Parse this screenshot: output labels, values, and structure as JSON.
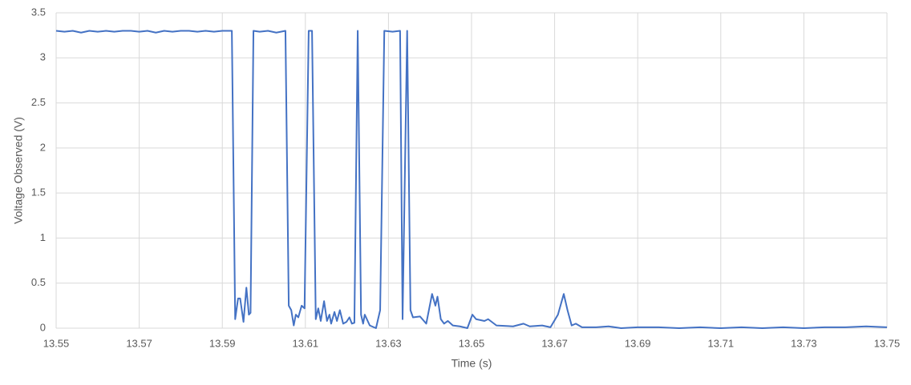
{
  "chart_data": {
    "type": "line",
    "x_label": "Time (s)",
    "y_label": "Voltage Observed (V)",
    "color": "#4472c4",
    "grid": true,
    "xlim": [
      13.55,
      13.75
    ],
    "xticks": [
      13.55,
      13.57,
      13.59,
      13.61,
      13.63,
      13.65,
      13.67,
      13.69,
      13.71,
      13.73,
      13.75
    ],
    "ylim": [
      0,
      3.5
    ],
    "yticks": [
      0,
      0.5,
      1,
      1.5,
      2,
      2.5,
      3,
      3.5
    ],
    "x": [
      13.55,
      13.552,
      13.554,
      13.556,
      13.558,
      13.56,
      13.562,
      13.564,
      13.566,
      13.568,
      13.57,
      13.572,
      13.574,
      13.576,
      13.578,
      13.58,
      13.582,
      13.584,
      13.586,
      13.588,
      13.59,
      13.5923,
      13.5931,
      13.5938,
      13.5943,
      13.5951,
      13.5958,
      13.5964,
      13.5968,
      13.5975,
      13.599,
      13.601,
      13.603,
      13.6052,
      13.606,
      13.6066,
      13.6072,
      13.6077,
      13.6083,
      13.6091,
      13.6098,
      13.6108,
      13.6116,
      13.6125,
      13.6131,
      13.6137,
      13.6145,
      13.6152,
      13.6158,
      13.6162,
      13.617,
      13.6176,
      13.6183,
      13.6191,
      13.6199,
      13.6206,
      13.6212,
      13.6218,
      13.6226,
      13.6234,
      13.6239,
      13.6243,
      13.6255,
      13.627,
      13.628,
      13.629,
      13.631,
      13.6328,
      13.6334,
      13.6345,
      13.6353,
      13.6359,
      13.6376,
      13.6391,
      13.6405,
      13.6413,
      13.6418,
      13.6426,
      13.6434,
      13.6443,
      13.6455,
      13.6472,
      13.649,
      13.6502,
      13.6511,
      13.6531,
      13.654,
      13.656,
      13.66,
      13.6625,
      13.664,
      13.667,
      13.669,
      13.6708,
      13.6722,
      13.6731,
      13.6741,
      13.6751,
      13.6766,
      13.68,
      13.683,
      13.686,
      13.69,
      13.695,
      13.7,
      13.705,
      13.71,
      13.715,
      13.72,
      13.725,
      13.73,
      13.735,
      13.74,
      13.745,
      13.75
    ],
    "values": [
      3.3,
      3.29,
      3.3,
      3.28,
      3.3,
      3.29,
      3.3,
      3.29,
      3.3,
      3.3,
      3.29,
      3.3,
      3.28,
      3.3,
      3.29,
      3.3,
      3.3,
      3.29,
      3.3,
      3.29,
      3.3,
      3.3,
      0.1,
      0.33,
      0.33,
      0.07,
      0.45,
      0.15,
      0.17,
      3.3,
      3.29,
      3.3,
      3.28,
      3.3,
      0.25,
      0.2,
      0.03,
      0.15,
      0.12,
      0.25,
      0.22,
      3.3,
      3.3,
      0.1,
      0.22,
      0.08,
      0.3,
      0.08,
      0.15,
      0.05,
      0.18,
      0.08,
      0.2,
      0.05,
      0.07,
      0.12,
      0.05,
      0.06,
      3.3,
      0.15,
      0.05,
      0.15,
      0.03,
      0,
      0.2,
      3.3,
      3.29,
      3.3,
      0.1,
      3.3,
      0.2,
      0.12,
      0.13,
      0.05,
      0.38,
      0.25,
      0.35,
      0.1,
      0.05,
      0.08,
      0.03,
      0.02,
      0,
      0.15,
      0.1,
      0.08,
      0.1,
      0.03,
      0.02,
      0.05,
      0.02,
      0.03,
      0.01,
      0.15,
      0.38,
      0.2,
      0.03,
      0.05,
      0.01,
      0.01,
      0.02,
      0,
      0.01,
      0.01,
      0,
      0.01,
      0,
      0.01,
      0,
      0.01,
      0,
      0.01,
      0.01,
      0.02,
      0.01
    ]
  }
}
